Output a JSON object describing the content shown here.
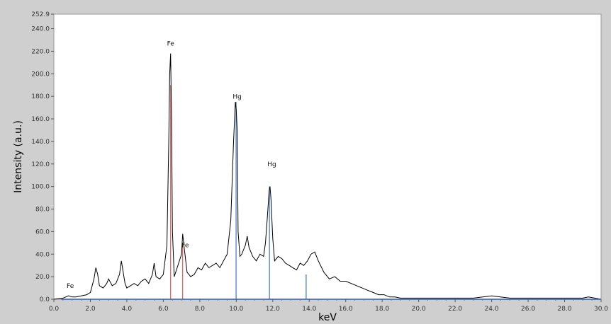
{
  "chart_data": {
    "type": "line",
    "title": "",
    "xlabel": "keV",
    "ylabel": "Intensity (a.u.)",
    "xlim": [
      0,
      30
    ],
    "ylim": [
      0,
      252.9
    ],
    "x_ticks": [
      "0.0",
      "2.0",
      "4.0",
      "6.0",
      "8.0",
      "10.0",
      "12.0",
      "14.0",
      "16.0",
      "18.0",
      "20.0",
      "22.0",
      "24.0",
      "26.0",
      "28.0",
      "30.0"
    ],
    "y_ticks": [
      "0.0",
      "20.0",
      "40.0",
      "60.0",
      "80.0",
      "100.0",
      "120.0",
      "140.0",
      "160.0",
      "180.0",
      "200.0",
      "220.0",
      "240.0",
      "252.9"
    ],
    "grid": false,
    "series": [
      {
        "x": [
          0.0,
          0.5,
          0.8,
          1.0,
          1.2,
          1.5,
          1.8,
          2.0,
          2.2,
          2.3,
          2.4,
          2.5,
          2.7,
          2.9,
          3.0,
          3.2,
          3.4,
          3.6,
          3.7,
          3.8,
          3.9,
          4.0,
          4.2,
          4.4,
          4.6,
          4.8,
          5.0,
          5.2,
          5.4,
          5.5,
          5.6,
          5.8,
          6.0,
          6.2,
          6.3,
          6.35,
          6.4,
          6.45,
          6.5,
          6.6,
          6.8,
          7.0,
          7.06,
          7.15,
          7.3,
          7.5,
          7.7,
          7.9,
          8.1,
          8.3,
          8.5,
          8.7,
          8.9,
          9.1,
          9.3,
          9.5,
          9.7,
          9.85,
          9.95,
          10.0,
          10.05,
          10.1,
          10.2,
          10.3,
          10.5,
          10.6,
          10.7,
          10.9,
          11.1,
          11.3,
          11.5,
          11.6,
          11.7,
          11.8,
          11.85,
          11.9,
          12.0,
          12.1,
          12.3,
          12.5,
          12.7,
          12.9,
          13.1,
          13.3,
          13.5,
          13.7,
          13.9,
          14.1,
          14.3,
          14.5,
          14.8,
          15.1,
          15.4,
          15.7,
          16.0,
          16.3,
          16.6,
          16.9,
          17.2,
          17.5,
          17.8,
          18.1,
          18.4,
          18.7,
          19.0,
          19.5,
          20.0,
          21.0,
          22.0,
          23.0,
          24.0,
          25.0,
          26.0,
          27.0,
          28.0,
          29.0,
          29.3,
          30.0
        ],
        "y": [
          0,
          1,
          3,
          2,
          2,
          3,
          4,
          6,
          18,
          28,
          22,
          12,
          10,
          14,
          18,
          12,
          14,
          22,
          34,
          24,
          14,
          10,
          12,
          14,
          12,
          16,
          18,
          14,
          22,
          32,
          20,
          18,
          22,
          48,
          140,
          200,
          218,
          160,
          60,
          20,
          30,
          40,
          58,
          45,
          24,
          20,
          22,
          28,
          26,
          32,
          28,
          30,
          32,
          28,
          34,
          40,
          70,
          140,
          175,
          168,
          150,
          60,
          38,
          40,
          48,
          56,
          46,
          38,
          34,
          40,
          38,
          50,
          72,
          96,
          100,
          90,
          54,
          34,
          38,
          36,
          32,
          30,
          28,
          26,
          32,
          30,
          34,
          40,
          42,
          34,
          24,
          18,
          20,
          16,
          16,
          14,
          12,
          10,
          8,
          6,
          4,
          4,
          2,
          2,
          1,
          1,
          1,
          1,
          1,
          1,
          3,
          1,
          1,
          1,
          1,
          1,
          2,
          0
        ]
      }
    ],
    "annotations": [
      {
        "text": "Fe",
        "x": 6.4,
        "y": 225
      },
      {
        "text": "Hg",
        "x": 10.05,
        "y": 178
      },
      {
        "text": "Hg",
        "x": 11.95,
        "y": 118
      },
      {
        "text": "Fe",
        "x": 7.2,
        "y": 46
      },
      {
        "text": "Fe",
        "x": 0.9,
        "y": 10
      }
    ],
    "element_lines": [
      {
        "element": "Fe",
        "x": 6.4,
        "height": 190,
        "color": "#e05a5a"
      },
      {
        "element": "Fe",
        "x": 7.06,
        "height": 50,
        "color": "#e05a5a"
      },
      {
        "element": "Hg",
        "x": 9.99,
        "height": 175,
        "color": "#3a78c8"
      },
      {
        "element": "Hg",
        "x": 11.82,
        "height": 100,
        "color": "#3a78c8"
      },
      {
        "element": "Hg",
        "x": 13.83,
        "height": 22,
        "color": "#3a78c8"
      }
    ],
    "colors": {
      "series": "#000000",
      "baseline": "#2a5fbf",
      "plot_bg": "#ffffff",
      "frame_bg": "#cfcfcf"
    }
  }
}
